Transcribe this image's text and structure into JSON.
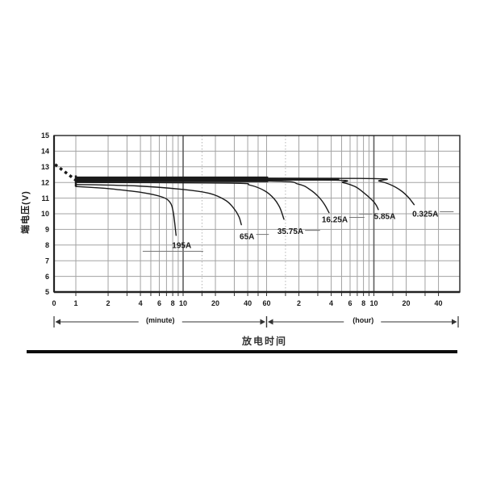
{
  "page": {
    "background": "#ffffff"
  },
  "chart_data": {
    "type": "line",
    "title": "放电时间",
    "ylabel": "端电压(V)",
    "xlabel_units": {
      "minute": "(minute)",
      "hour": "(hour)"
    },
    "x_scale": "log-time",
    "time_unit_of_data": "minutes",
    "ylim": [
      5,
      15
    ],
    "y_ticks": [
      5,
      6,
      7,
      8,
      9,
      10,
      11,
      12,
      13,
      14,
      15
    ],
    "x_origin_label": "0",
    "x_tick_labels_minutes": [
      {
        "t": 1,
        "label": "1"
      },
      {
        "t": 2,
        "label": "2"
      },
      {
        "t": 4,
        "label": "4"
      },
      {
        "t": 6,
        "label": "6"
      },
      {
        "t": 8,
        "label": "8"
      },
      {
        "t": 10,
        "label": "10"
      },
      {
        "t": 20,
        "label": "20"
      },
      {
        "t": 40,
        "label": "40"
      },
      {
        "t": 60,
        "label": "60"
      }
    ],
    "x_tick_labels_hours": [
      {
        "t": 120,
        "label": "2"
      },
      {
        "t": 240,
        "label": "4"
      },
      {
        "t": 360,
        "label": "6"
      },
      {
        "t": 480,
        "label": "8"
      },
      {
        "t": 600,
        "label": "10"
      },
      {
        "t": 1200,
        "label": "20"
      },
      {
        "t": 2400,
        "label": "40"
      }
    ],
    "x_gridlines_solid": [
      1,
      2,
      3,
      4,
      5,
      6,
      7,
      8,
      9,
      10,
      20,
      30,
      40,
      50,
      60,
      120,
      180,
      240,
      300,
      360,
      420,
      480,
      540,
      600,
      900,
      1200,
      1800,
      2400
    ],
    "x_gridlines_dark": [
      10,
      600
    ],
    "x_gridlines_dotted": [
      15,
      90
    ],
    "series": [
      {
        "label": "195A",
        "points": [
          [
            1,
            11.74
          ],
          [
            1.6,
            11.66
          ],
          [
            2.2,
            11.58
          ],
          [
            4.2,
            11.35
          ],
          [
            6.3,
            11.08
          ],
          [
            7.5,
            10.76
          ],
          [
            8.1,
            10.1
          ],
          [
            8.6,
            8.62
          ]
        ],
        "label_pos": [
          9.7,
          8.0
        ],
        "leader": [
          [
            4.2,
            7.6
          ],
          [
            15.4,
            7.6
          ]
        ]
      },
      {
        "label": "65A",
        "points": [
          [
            1,
            11.87
          ],
          [
            3.7,
            11.78
          ],
          [
            9.7,
            11.56
          ],
          [
            17.7,
            11.3
          ],
          [
            25,
            10.85
          ],
          [
            29.8,
            10.33
          ],
          [
            33.2,
            9.8
          ],
          [
            34.9,
            9.3
          ]
        ],
        "label_pos": [
          39.4,
          8.56
        ],
        "leader": [
          [
            48,
            8.68
          ],
          [
            63,
            8.68
          ]
        ]
      },
      {
        "label": "35.75A",
        "points": [
          [
            1,
            12.0
          ],
          [
            27,
            11.96
          ],
          [
            42,
            11.83
          ],
          [
            57.5,
            11.47
          ],
          [
            70.7,
            10.95
          ],
          [
            79.8,
            10.38
          ],
          [
            87,
            9.65
          ]
        ],
        "label_pos": [
          100,
          8.88
        ],
        "leader": [
          [
            137,
            8.94
          ],
          [
            189,
            8.94
          ]
        ]
      },
      {
        "label": "16.25A",
        "points": [
          [
            1,
            12.12
          ],
          [
            60,
            12.1
          ],
          [
            119,
            11.89
          ],
          [
            154,
            11.52
          ],
          [
            182,
            11.1
          ],
          [
            206,
            10.64
          ],
          [
            229,
            10.07
          ]
        ],
        "label_pos": [
          259,
          9.64
        ],
        "leader": [
          [
            354,
            9.77
          ],
          [
            490,
            9.77
          ]
        ]
      },
      {
        "label": "5.85A",
        "points": [
          [
            1,
            12.18
          ],
          [
            200,
            12.16
          ],
          [
            309,
            11.99
          ],
          [
            402,
            11.73
          ],
          [
            479,
            11.36
          ],
          [
            572,
            10.9
          ],
          [
            626,
            10.59
          ],
          [
            660,
            10.27
          ]
        ],
        "label_pos": [
          758,
          9.85
        ],
        "leader": [
          [
            437,
            9.98
          ],
          [
            576,
            9.98
          ]
        ]
      },
      {
        "label": "0.325A",
        "points": [
          [
            1,
            12.28
          ],
          [
            450,
            12.26
          ],
          [
            672,
            12.09
          ],
          [
            875,
            11.83
          ],
          [
            1078,
            11.47
          ],
          [
            1259,
            11.05
          ],
          [
            1424,
            10.58
          ]
        ],
        "label_pos": [
          1808,
          10.0
        ],
        "leader": [
          [
            2470,
            10.13
          ],
          [
            3320,
            10.13
          ]
        ]
      }
    ],
    "band_segments": [
      {
        "t1": 1,
        "t2": 62,
        "v_top": 12.38,
        "v_bottom": 12.02
      },
      {
        "t1": 62,
        "t2": 285,
        "v_top": 12.3,
        "v_bottom": 12.12
      }
    ],
    "open_circuit_dash": [
      [
        0.64,
        13.15
      ],
      [
        1.0,
        12.15
      ]
    ],
    "start_connector": {
      "t": 1,
      "v_top": 12.45,
      "v_bottom": 11.74
    },
    "colors": {
      "curve": "#1a1a1a",
      "grid": "#a3a3a3",
      "grid_dark": "#5f5f5f",
      "grid_dotted": "#b5b5b5",
      "axis": "#222222",
      "text": "#1a1a1a",
      "leader": "#777777",
      "dimension": "#333333"
    }
  }
}
